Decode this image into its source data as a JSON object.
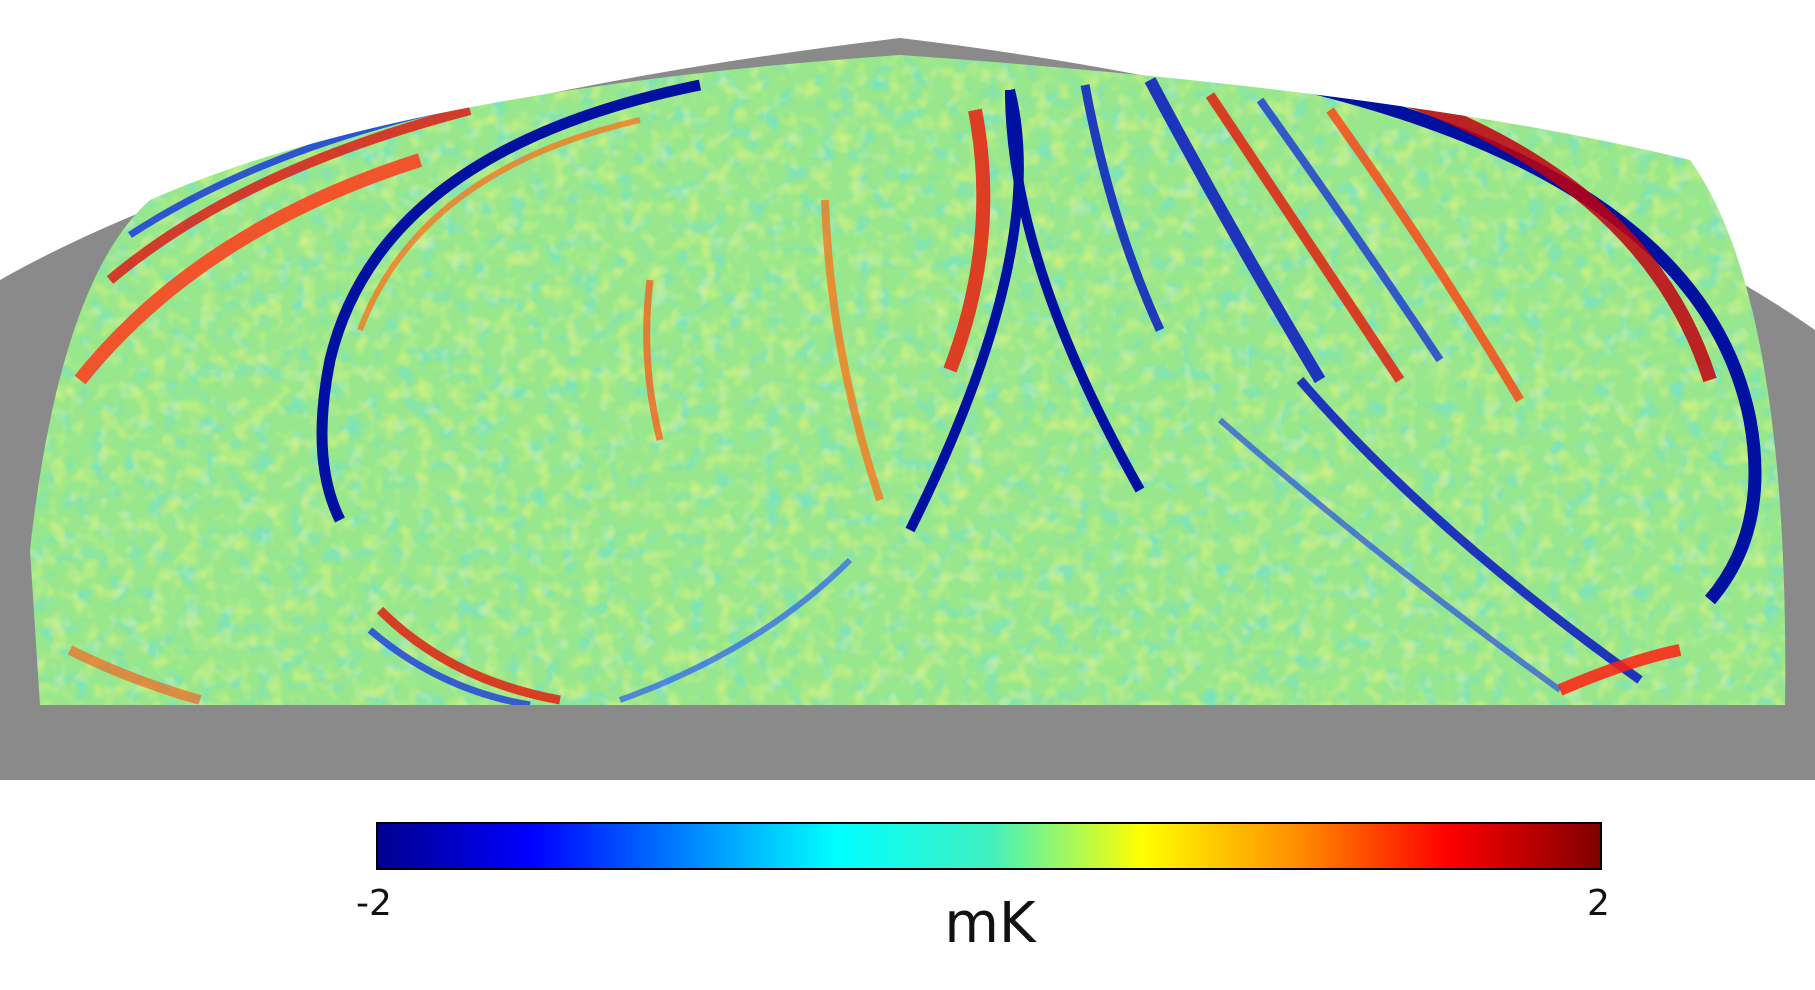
{
  "map": {
    "projection": "mollweide-northern-half",
    "mask_color": "#8a8a8a",
    "background_color": "#ffffff",
    "features": [
      {
        "name": "left-great-circle-ring",
        "sign": "cold"
      },
      {
        "name": "central-crossing-arcs",
        "sign": "cold"
      },
      {
        "name": "right-parallel-stripes",
        "sign": "mixed"
      },
      {
        "name": "far-right-ring",
        "sign": "cold"
      },
      {
        "name": "lower-left-arc",
        "sign": "warm"
      }
    ]
  },
  "colorbar": {
    "colormap": "jet",
    "colors": [
      "#00008f",
      "#0000ff",
      "#00ffff",
      "#ffff00",
      "#ff0000",
      "#800000"
    ],
    "min_label": "-2",
    "max_label": "2",
    "unit_label": "mK",
    "range": [
      -2,
      2
    ]
  }
}
